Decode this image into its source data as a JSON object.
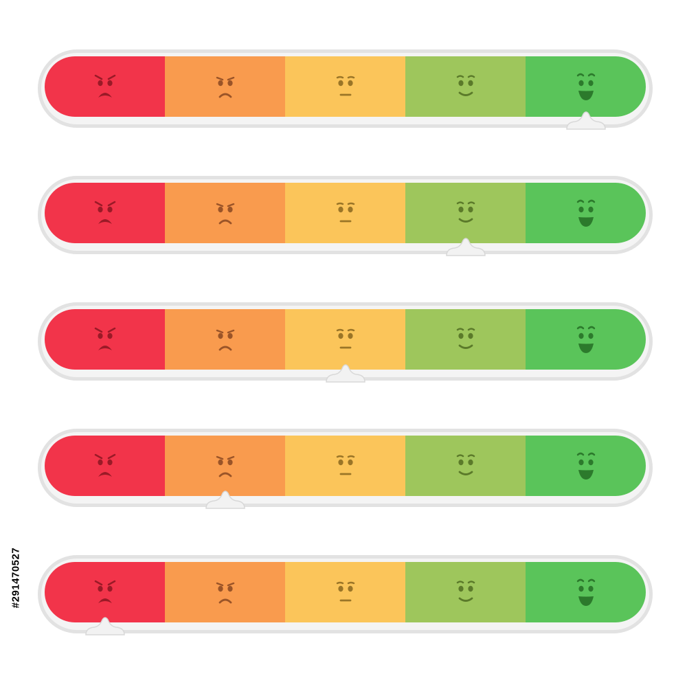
{
  "stock_id": "#291470527",
  "segments": [
    {
      "mood": "angry",
      "color": "#f2344a",
      "face_color": "#9a1a27",
      "icon": "angry-face-icon"
    },
    {
      "mood": "sad",
      "color": "#f99b4e",
      "face_color": "#9a5428",
      "icon": "sad-face-icon"
    },
    {
      "mood": "neutral",
      "color": "#fbc55a",
      "face_color": "#9a7527",
      "icon": "neutral-face-icon"
    },
    {
      "mood": "content",
      "color": "#9ec65c",
      "face_color": "#5b7a2a",
      "icon": "content-face-icon"
    },
    {
      "mood": "happy",
      "color": "#5ac45a",
      "face_color": "#2c7a2c",
      "icon": "happy-face-icon"
    }
  ],
  "meters": [
    {
      "selected_level": 5
    },
    {
      "selected_level": 4
    },
    {
      "selected_level": 3
    },
    {
      "selected_level": 2
    },
    {
      "selected_level": 1
    }
  ]
}
